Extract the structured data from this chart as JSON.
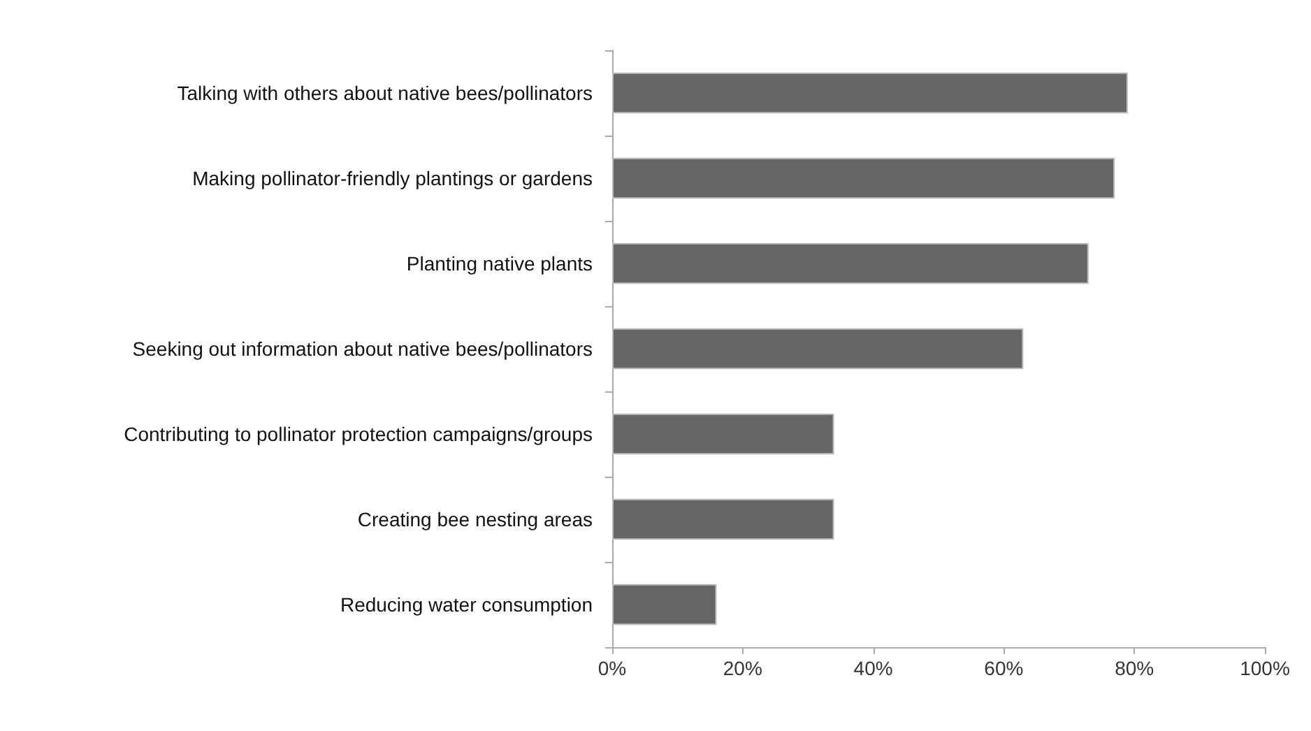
{
  "chart_data": {
    "type": "bar",
    "orientation": "horizontal",
    "categories": [
      "Talking with others about native bees/pollinators",
      "Making pollinator-friendly plantings or gardens",
      "Planting native plants",
      "Seeking out information about native bees/pollinators",
      "Contributing to pollinator protection campaigns/groups",
      "Creating bee nesting areas",
      "Reducing water consumption"
    ],
    "values": [
      79,
      77,
      73,
      63,
      34,
      34,
      16
    ],
    "color": "#666666",
    "xlim": [
      0,
      100
    ],
    "xticks": [
      {
        "value": 0,
        "label": "0%"
      },
      {
        "value": 20,
        "label": "20%"
      },
      {
        "value": 40,
        "label": "40%"
      },
      {
        "value": 60,
        "label": "60%"
      },
      {
        "value": 80,
        "label": "80%"
      },
      {
        "value": 100,
        "label": "100%"
      }
    ],
    "grid": false
  }
}
